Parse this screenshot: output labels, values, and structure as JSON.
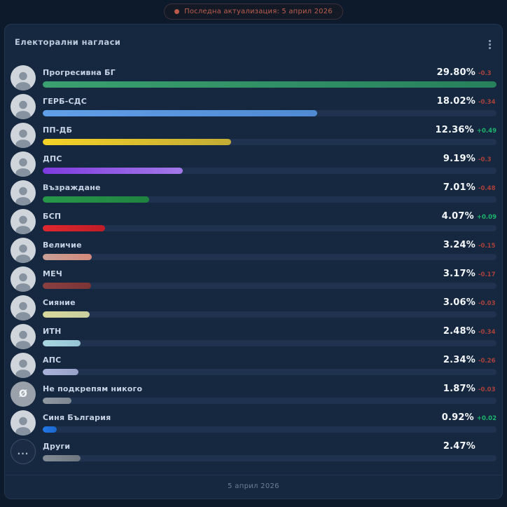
{
  "page": {
    "last_update_badge": "Последна актуализация: 5 април 2026",
    "footer_date": "5 април 2026"
  },
  "card": {
    "title": "Електорални нагласи"
  },
  "colors": {
    "page_bg": "#0d1a2c",
    "card_bg": "#16283f",
    "track": "#1f3350",
    "positive": "#1db56e",
    "negative": "#a8413c",
    "badge_accent": "#bd5e4f"
  },
  "chart_data": {
    "type": "bar",
    "title": "Електорални нагласи",
    "unit": "%",
    "orientation": "horizontal",
    "scale_max": 29.8,
    "categories": [
      "Прогресивна БГ",
      "ГЕРБ-СДС",
      "ПП-ДБ",
      "ДПС",
      "Възраждане",
      "БСП",
      "Величие",
      "МЕЧ",
      "Сияние",
      "ИТН",
      "АПС",
      "Не подкрепям никого",
      "Синя България",
      "Други"
    ],
    "values": [
      29.8,
      18.02,
      12.36,
      9.19,
      7.01,
      4.07,
      3.24,
      3.17,
      3.06,
      2.48,
      2.34,
      1.87,
      0.92,
      2.47
    ],
    "changes": [
      -0.3,
      -0.34,
      0.49,
      -0.3,
      -0.48,
      0.09,
      -0.15,
      -0.17,
      -0.03,
      -0.34,
      -0.26,
      -0.03,
      0.02,
      null
    ]
  },
  "parties": [
    {
      "name": "Прогресивна БГ",
      "value": 29.8,
      "percent_label": "29.80%",
      "change": "-0.3",
      "direction": "down",
      "bar_from": "#3aa06f",
      "bar_to": "#27815c",
      "avatar": "photo",
      "glyph": ""
    },
    {
      "name": "ГЕРБ-СДС",
      "value": 18.02,
      "percent_label": "18.02%",
      "change": "-0.34",
      "direction": "down",
      "bar_from": "#619fe8",
      "bar_to": "#4f8ad2",
      "avatar": "photo",
      "glyph": ""
    },
    {
      "name": "ПП-ДБ",
      "value": 12.36,
      "percent_label": "12.36%",
      "change": "+0.49",
      "direction": "up",
      "bar_from": "#f6d327",
      "bar_to": "#c2ac35",
      "avatar": "photo",
      "glyph": ""
    },
    {
      "name": "ДПС",
      "value": 9.19,
      "percent_label": "9.19%",
      "change": "-0.3",
      "direction": "down",
      "bar_from": "#7e3be0",
      "bar_to": "#a379e8",
      "avatar": "photo",
      "glyph": ""
    },
    {
      "name": "Възраждане",
      "value": 7.01,
      "percent_label": "7.01%",
      "change": "-0.48",
      "direction": "down",
      "bar_from": "#27984a",
      "bar_to": "#1f8340",
      "avatar": "photo",
      "glyph": ""
    },
    {
      "name": "БСП",
      "value": 4.07,
      "percent_label": "4.07%",
      "change": "+0.09",
      "direction": "up",
      "bar_from": "#e02830",
      "bar_to": "#c01c26",
      "avatar": "photo",
      "glyph": ""
    },
    {
      "name": "Величие",
      "value": 3.24,
      "percent_label": "3.24%",
      "change": "-0.15",
      "direction": "down",
      "bar_from": "#c9a096",
      "bar_to": "#d4897b",
      "avatar": "photo",
      "glyph": ""
    },
    {
      "name": "МЕЧ",
      "value": 3.17,
      "percent_label": "3.17%",
      "change": "-0.17",
      "direction": "down",
      "bar_from": "#8a4040",
      "bar_to": "#7c3434",
      "avatar": "photo",
      "glyph": ""
    },
    {
      "name": "Сияние",
      "value": 3.06,
      "percent_label": "3.06%",
      "change": "-0.03",
      "direction": "down",
      "bar_from": "#d8d79c",
      "bar_to": "#c9cf9f",
      "avatar": "photo",
      "glyph": ""
    },
    {
      "name": "ИТН",
      "value": 2.48,
      "percent_label": "2.48%",
      "change": "-0.34",
      "direction": "down",
      "bar_from": "#aad6e0",
      "bar_to": "#95c4d4",
      "avatar": "photo",
      "glyph": ""
    },
    {
      "name": "АПС",
      "value": 2.34,
      "percent_label": "2.34%",
      "change": "-0.26",
      "direction": "down",
      "bar_from": "#aab2d8",
      "bar_to": "#98a2c8",
      "avatar": "photo",
      "glyph": ""
    },
    {
      "name": "Не подкрепям никого",
      "value": 1.87,
      "percent_label": "1.87%",
      "change": "-0.03",
      "direction": "down",
      "bar_from": "#9098a2",
      "bar_to": "#7e8792",
      "avatar": "none",
      "glyph": "Ø"
    },
    {
      "name": "Синя България",
      "value": 0.92,
      "percent_label": "0.92%",
      "change": "+0.02",
      "direction": "up",
      "bar_from": "#2277e8",
      "bar_to": "#1b66cc",
      "avatar": "photo",
      "glyph": ""
    },
    {
      "name": "Други",
      "value": 2.47,
      "percent_label": "2.47%",
      "change": "",
      "direction": "none",
      "bar_from": "#858c96",
      "bar_to": "#6f7680",
      "avatar": "other",
      "glyph": "..."
    }
  ]
}
